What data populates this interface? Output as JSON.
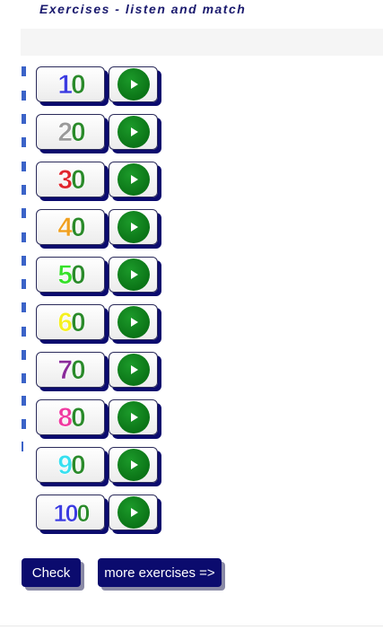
{
  "header": {
    "title": "Exercises - listen and match"
  },
  "items": [
    {
      "number": "10",
      "tens": "1",
      "tens_color": "#3b3be0",
      "play_icon": "play-icon"
    },
    {
      "number": "20",
      "tens": "2",
      "tens_color": "#9a9a9a",
      "play_icon": "play-icon"
    },
    {
      "number": "30",
      "tens": "3",
      "tens_color": "#e0262e",
      "play_icon": "play-icon"
    },
    {
      "number": "40",
      "tens": "4",
      "tens_color": "#f0a020",
      "play_icon": "play-icon"
    },
    {
      "number": "50",
      "tens": "5",
      "tens_color": "#36e02a",
      "play_icon": "play-icon"
    },
    {
      "number": "60",
      "tens": "6",
      "tens_color": "#f5f020",
      "play_icon": "play-icon"
    },
    {
      "number": "70",
      "tens": "7",
      "tens_color": "#8a2a9a",
      "play_icon": "play-icon"
    },
    {
      "number": "80",
      "tens": "8",
      "tens_color": "#f03aa0",
      "play_icon": "play-icon"
    },
    {
      "number": "90",
      "tens": "9",
      "tens_color": "#38e0f0",
      "play_icon": "play-icon"
    },
    {
      "number": "100",
      "tens": "10",
      "tens_color": "#3b3be0",
      "play_icon": "play-icon"
    }
  ],
  "zero_color": "#2a8a2a",
  "buttons": {
    "check_label": "Check",
    "more_label": "more exercises =>"
  },
  "colors": {
    "button_bg": "#0b0b6e",
    "play_green": "#0b7417",
    "marker": "#3b63c8"
  }
}
